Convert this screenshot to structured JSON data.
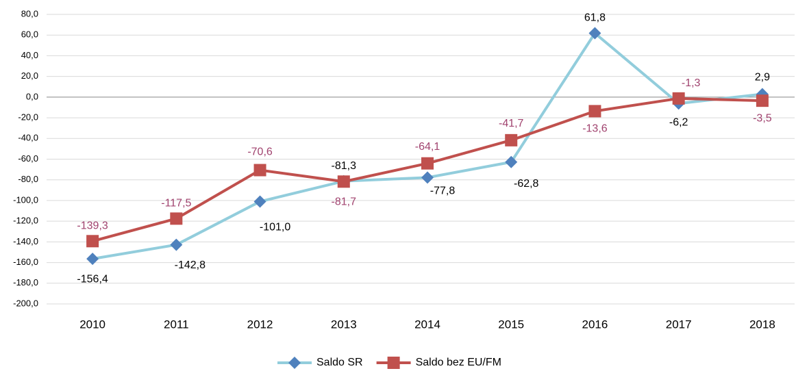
{
  "chart_data": {
    "type": "line",
    "categories": [
      "2010",
      "2011",
      "2012",
      "2013",
      "2014",
      "2015",
      "2016",
      "2017",
      "2018"
    ],
    "series": [
      {
        "name": "Saldo SR",
        "color": "#92cddc",
        "marker": "diamond",
        "marker_color": "#4f81bd",
        "label_color": "#000000",
        "values": [
          -156.4,
          -142.8,
          -101.0,
          -81.3,
          -77.8,
          -62.8,
          61.8,
          -6.2,
          2.9
        ],
        "value_labels": [
          "-156,4",
          "-142,8",
          "-101,0",
          "-81,3",
          "-77,8",
          "-62,8",
          "61,8",
          "-6,2",
          "2,9"
        ]
      },
      {
        "name": "Saldo bez EU/FM",
        "color": "#c0504d",
        "marker": "square",
        "marker_color": "#c0504d",
        "label_color": "#a0426e",
        "values": [
          -139.3,
          -117.5,
          -70.6,
          -81.7,
          -64.1,
          -41.7,
          -13.6,
          -1.3,
          -3.5
        ],
        "value_labels": [
          "-139,3",
          "-117,5",
          "-70,6",
          "-81,7",
          "-64,1",
          "-41,7",
          "-13,6",
          "-1,3",
          "-3,5"
        ]
      }
    ],
    "ylim": [
      -200,
      80
    ],
    "yticks": [
      {
        "value": -200,
        "label": "-200,0"
      },
      {
        "value": -180,
        "label": "-180,0"
      },
      {
        "value": -160,
        "label": "-160,0"
      },
      {
        "value": -140,
        "label": "-140,0"
      },
      {
        "value": -120,
        "label": "-120,0"
      },
      {
        "value": -100,
        "label": "-100,0"
      },
      {
        "value": -80,
        "label": "-80,0"
      },
      {
        "value": -60,
        "label": "-60,0"
      },
      {
        "value": -40,
        "label": "-40,0"
      },
      {
        "value": -20,
        "label": "-20,0"
      },
      {
        "value": 0,
        "label": "0,0"
      },
      {
        "value": 20,
        "label": "20,0"
      },
      {
        "value": 40,
        "label": "40,0"
      },
      {
        "value": 60,
        "label": "60,0"
      },
      {
        "value": 80,
        "label": "80,0"
      }
    ],
    "grid": true,
    "legend": "bottom"
  }
}
